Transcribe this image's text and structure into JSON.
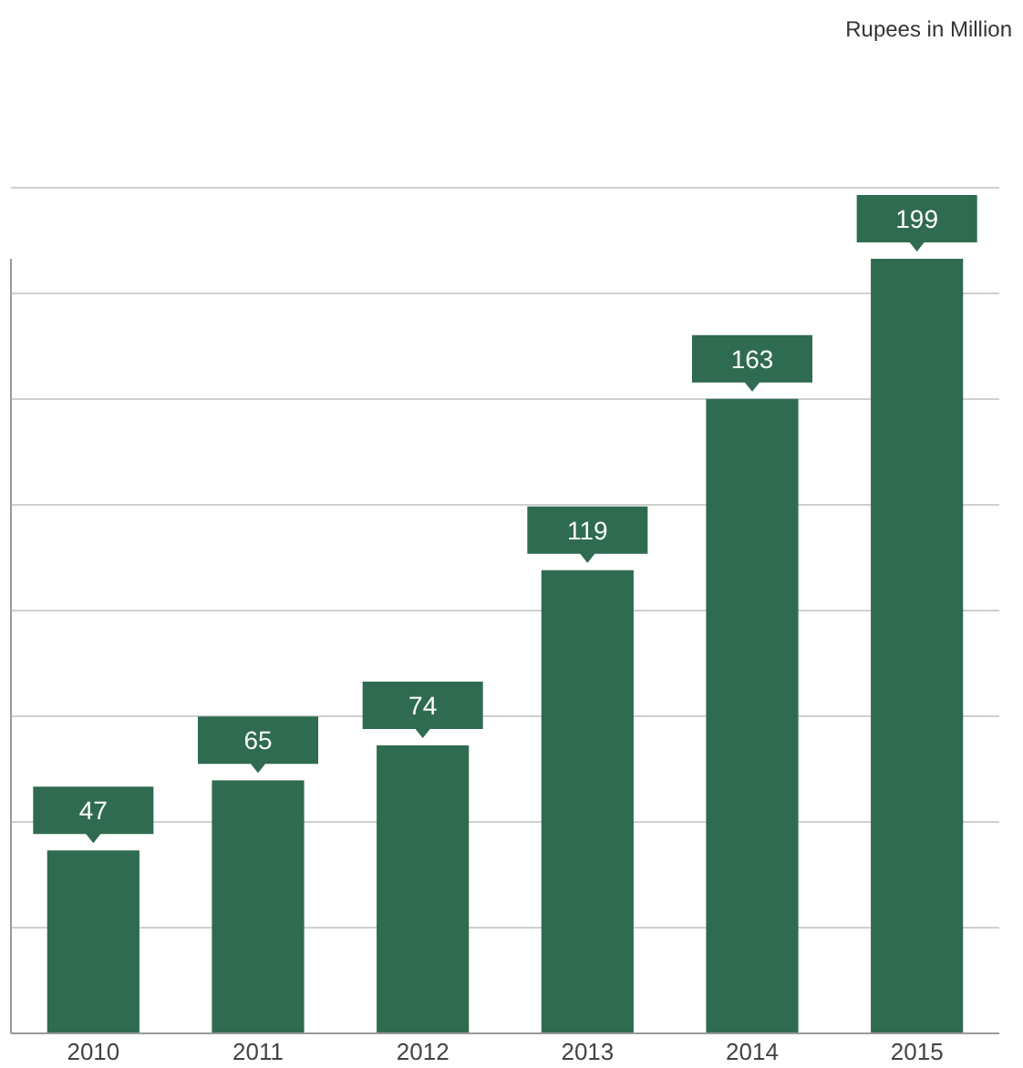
{
  "chart_data": {
    "type": "bar",
    "annotations": [
      "Rupees in Million"
    ],
    "categories": [
      "2010",
      "2011",
      "2012",
      "2013",
      "2014",
      "2015"
    ],
    "values": [
      47,
      65,
      74,
      119,
      163,
      199
    ],
    "color": "#2f6b50",
    "data_labels": true,
    "grid": "y",
    "tick_labels": "x"
  }
}
